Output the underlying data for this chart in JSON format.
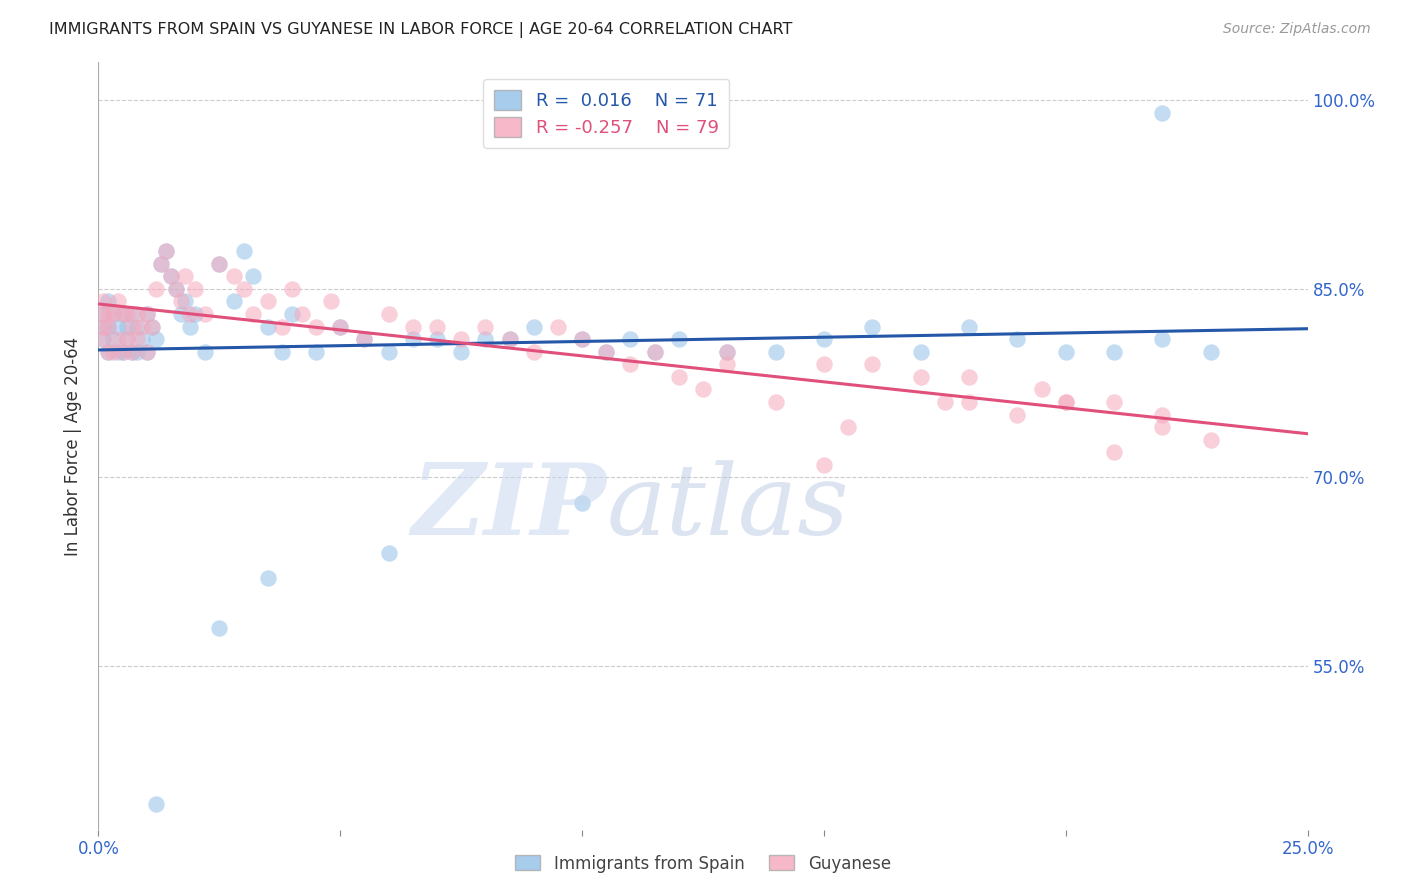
{
  "title": "IMMIGRANTS FROM SPAIN VS GUYANESE IN LABOR FORCE | AGE 20-64 CORRELATION CHART",
  "source": "Source: ZipAtlas.com",
  "ylabel": "In Labor Force | Age 20-64",
  "ytick_values": [
    0.55,
    0.7,
    0.85,
    1.0
  ],
  "ytick_labels": [
    "55.0%",
    "70.0%",
    "85.0%",
    "100.0%"
  ],
  "xlim": [
    0.0,
    0.25
  ],
  "ylim": [
    0.42,
    1.03
  ],
  "legend_blue_r": "0.016",
  "legend_blue_n": "71",
  "legend_pink_r": "-0.257",
  "legend_pink_n": "79",
  "blue_scatter_color": "#92c0e8",
  "pink_scatter_color": "#f5a8bc",
  "blue_line_color": "#2457a8",
  "pink_line_color": "#e0507a",
  "background_color": "#ffffff",
  "blue_x": [
    0.001,
    0.001,
    0.001,
    0.002,
    0.002,
    0.002,
    0.003,
    0.003,
    0.004,
    0.004,
    0.005,
    0.005,
    0.006,
    0.006,
    0.007,
    0.007,
    0.008,
    0.008,
    0.009,
    0.01,
    0.01,
    0.011,
    0.012,
    0.013,
    0.014,
    0.015,
    0.016,
    0.017,
    0.018,
    0.019,
    0.02,
    0.022,
    0.025,
    0.028,
    0.03,
    0.032,
    0.035,
    0.038,
    0.04,
    0.045,
    0.05,
    0.055,
    0.06,
    0.065,
    0.07,
    0.075,
    0.08,
    0.085,
    0.09,
    0.1,
    0.105,
    0.11,
    0.115,
    0.12,
    0.13,
    0.14,
    0.15,
    0.16,
    0.17,
    0.18,
    0.19,
    0.2,
    0.21,
    0.22,
    0.23,
    0.1,
    0.06,
    0.035,
    0.025,
    0.012,
    0.22
  ],
  "blue_y": [
    0.81,
    0.82,
    0.83,
    0.8,
    0.82,
    0.84,
    0.81,
    0.83,
    0.8,
    0.82,
    0.8,
    0.83,
    0.81,
    0.82,
    0.8,
    0.83,
    0.82,
    0.8,
    0.81,
    0.8,
    0.83,
    0.82,
    0.81,
    0.87,
    0.88,
    0.86,
    0.85,
    0.83,
    0.84,
    0.82,
    0.83,
    0.8,
    0.87,
    0.84,
    0.88,
    0.86,
    0.82,
    0.8,
    0.83,
    0.8,
    0.82,
    0.81,
    0.8,
    0.81,
    0.81,
    0.8,
    0.81,
    0.81,
    0.82,
    0.81,
    0.8,
    0.81,
    0.8,
    0.81,
    0.8,
    0.8,
    0.81,
    0.82,
    0.8,
    0.82,
    0.81,
    0.8,
    0.8,
    0.81,
    0.8,
    0.68,
    0.64,
    0.62,
    0.58,
    0.44,
    0.99
  ],
  "pink_x": [
    0.001,
    0.001,
    0.001,
    0.001,
    0.002,
    0.002,
    0.002,
    0.003,
    0.003,
    0.004,
    0.004,
    0.005,
    0.005,
    0.006,
    0.006,
    0.007,
    0.007,
    0.008,
    0.008,
    0.009,
    0.01,
    0.01,
    0.011,
    0.012,
    0.013,
    0.014,
    0.015,
    0.016,
    0.017,
    0.018,
    0.019,
    0.02,
    0.022,
    0.025,
    0.028,
    0.03,
    0.032,
    0.035,
    0.038,
    0.04,
    0.042,
    0.045,
    0.048,
    0.05,
    0.055,
    0.06,
    0.065,
    0.07,
    0.075,
    0.08,
    0.085,
    0.09,
    0.095,
    0.1,
    0.105,
    0.11,
    0.115,
    0.12,
    0.125,
    0.13,
    0.14,
    0.15,
    0.155,
    0.16,
    0.17,
    0.175,
    0.18,
    0.19,
    0.2,
    0.21,
    0.22,
    0.23,
    0.13,
    0.15,
    0.18,
    0.195,
    0.2,
    0.21,
    0.22
  ],
  "pink_y": [
    0.82,
    0.81,
    0.84,
    0.83,
    0.8,
    0.83,
    0.82,
    0.8,
    0.83,
    0.81,
    0.84,
    0.8,
    0.83,
    0.81,
    0.83,
    0.82,
    0.8,
    0.83,
    0.81,
    0.82,
    0.8,
    0.83,
    0.82,
    0.85,
    0.87,
    0.88,
    0.86,
    0.85,
    0.84,
    0.86,
    0.83,
    0.85,
    0.83,
    0.87,
    0.86,
    0.85,
    0.83,
    0.84,
    0.82,
    0.85,
    0.83,
    0.82,
    0.84,
    0.82,
    0.81,
    0.83,
    0.82,
    0.82,
    0.81,
    0.82,
    0.81,
    0.8,
    0.82,
    0.81,
    0.8,
    0.79,
    0.8,
    0.78,
    0.77,
    0.79,
    0.76,
    0.79,
    0.74,
    0.79,
    0.78,
    0.76,
    0.76,
    0.75,
    0.76,
    0.72,
    0.74,
    0.73,
    0.8,
    0.71,
    0.78,
    0.77,
    0.76,
    0.76,
    0.75
  ]
}
